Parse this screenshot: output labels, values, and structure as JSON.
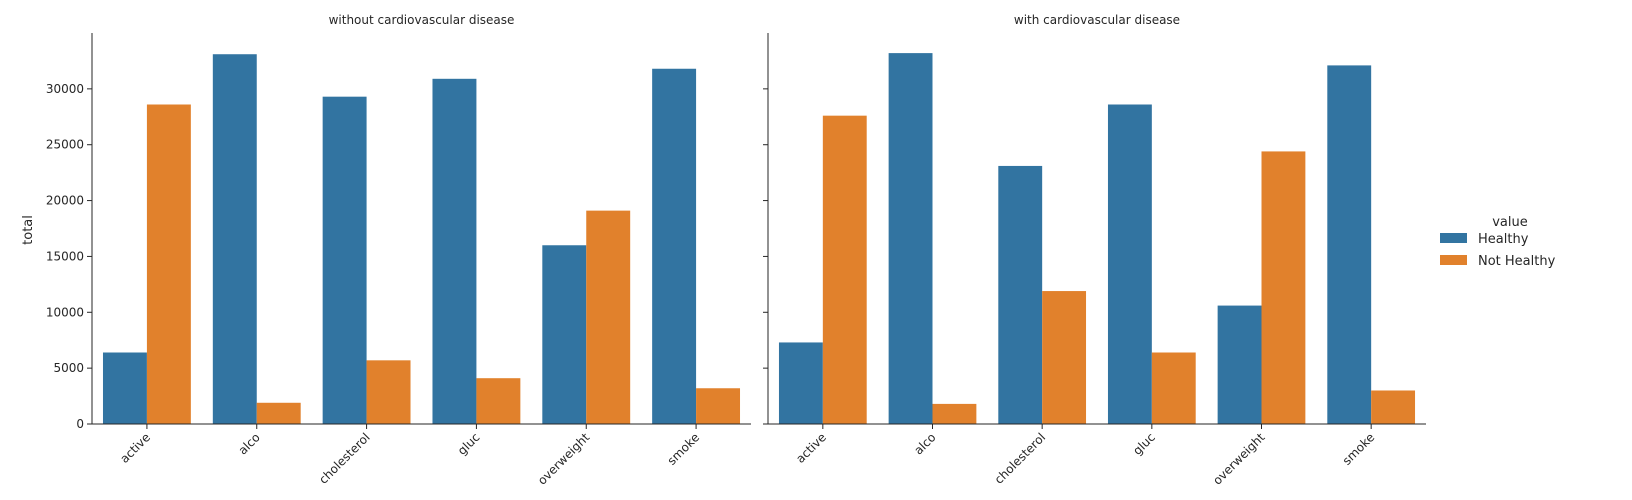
{
  "chart_data": {
    "type": "bar",
    "ylabel": "total",
    "ylim": [
      0,
      35000
    ],
    "yticks": [
      0,
      5000,
      10000,
      15000,
      20000,
      25000,
      30000
    ],
    "categories": [
      "active",
      "alco",
      "cholesterol",
      "gluc",
      "overweight",
      "smoke"
    ],
    "legend": {
      "title": "value",
      "placement": "right",
      "entries": [
        {
          "name": "Healthy",
          "color": "#3274a1"
        },
        {
          "name": "Not Healthy",
          "color": "#e1812c"
        }
      ]
    },
    "panels": [
      {
        "title": "without cardiovascular disease",
        "series": [
          {
            "name": "Healthy",
            "values": [
              6400,
              33100,
              29300,
              30900,
              16000,
              31800
            ]
          },
          {
            "name": "Not Healthy",
            "values": [
              28600,
              1900,
              5700,
              4100,
              19100,
              3200
            ]
          }
        ]
      },
      {
        "title": "with cardiovascular disease",
        "series": [
          {
            "name": "Healthy",
            "values": [
              7300,
              33200,
              23100,
              28600,
              10600,
              32100
            ]
          },
          {
            "name": "Not Healthy",
            "values": [
              27600,
              1800,
              11900,
              6400,
              24400,
              3000
            ]
          }
        ]
      }
    ]
  }
}
